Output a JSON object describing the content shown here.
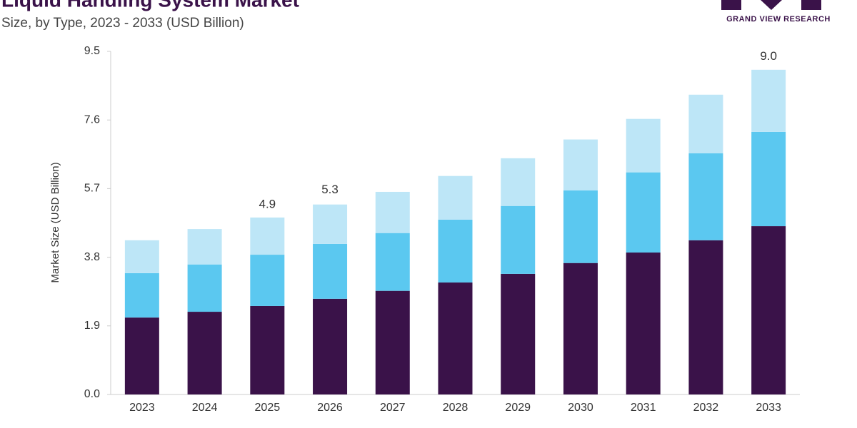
{
  "chart_data": {
    "type": "stacked_bar",
    "title": "Liquid Handling System Market",
    "subtitle": "Size, by Type, 2023 - 2033 (USD Billion)",
    "logo": "GRAND VIEW RESEARCH",
    "y_label": "Market Size (USD Billion)",
    "categories": [
      "2023",
      "2024",
      "2025",
      "2026",
      "2027",
      "2028",
      "2029",
      "2030",
      "2031",
      "2032",
      "2033"
    ],
    "series": [
      {
        "color": "#3a1249",
        "values": [
          2.13,
          2.29,
          2.45,
          2.65,
          2.87,
          3.1,
          3.34,
          3.64,
          3.93,
          4.27,
          4.66
        ]
      },
      {
        "color": "#5bc8f0",
        "values": [
          1.23,
          1.31,
          1.42,
          1.52,
          1.6,
          1.74,
          1.88,
          2.01,
          2.22,
          2.41,
          2.61
        ]
      },
      {
        "color": "#bde6f7",
        "values": [
          0.91,
          0.98,
          1.03,
          1.09,
          1.14,
          1.21,
          1.32,
          1.41,
          1.48,
          1.62,
          1.72
        ]
      }
    ],
    "totals": {
      "values": [
        null,
        null,
        4.9,
        5.3,
        null,
        null,
        null,
        null,
        null,
        null,
        9
      ],
      "value_labels": [
        null,
        null,
        "4.9",
        "5.3",
        null,
        null,
        null,
        null,
        null,
        null,
        "9.0"
      ]
    },
    "ylim": [
      0,
      9.5
    ],
    "yticks": [
      {
        "value": 0,
        "label": "0.0"
      },
      1.9,
      3.8,
      5.7,
      7.6,
      9.5
    ]
  }
}
